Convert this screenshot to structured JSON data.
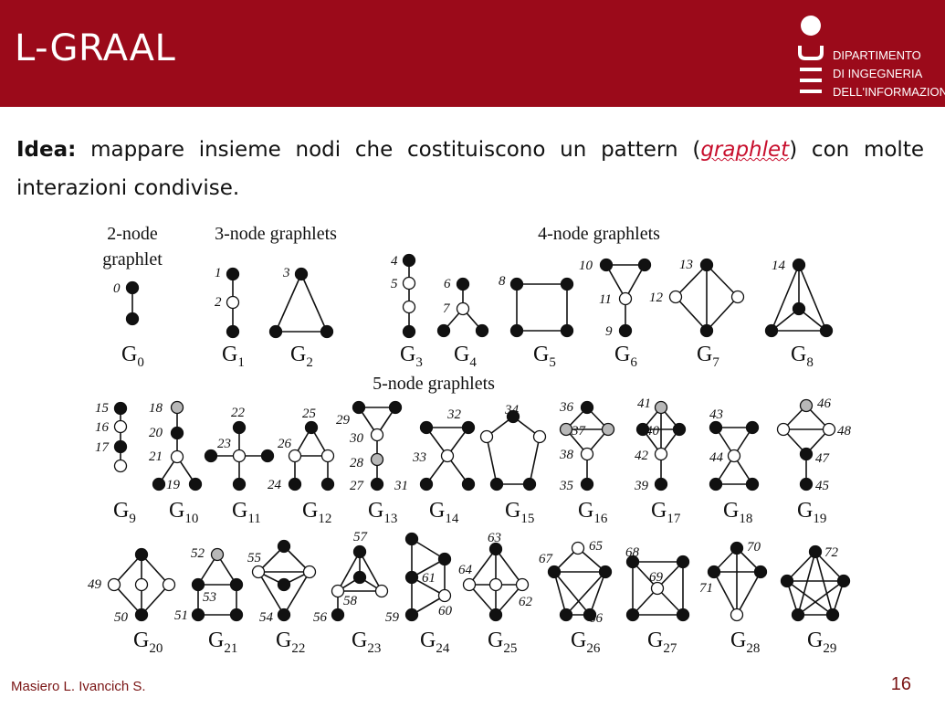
{
  "slide": {
    "title": "L-GRAAL",
    "logo_lines": [
      "DIPARTIMENTO",
      "DI INGEGNERIA",
      "DELL'INFORMAZIONE"
    ],
    "idea_label": "Idea:",
    "idea_text_before": " mappare insieme nodi che costituiscono un pattern (",
    "idea_highlight": "graphlet",
    "idea_text_after": ") con molte interazioni condivise.",
    "footer_authors": "Masiero L. Ivancich S.",
    "page_number": "16"
  },
  "diagram": {
    "section_labels": [
      "2-node graphlet",
      "3-node graphlets",
      "4-node graphlets",
      "5-node graphlets"
    ],
    "graph_labels": [
      "G0",
      "G1",
      "G2",
      "G3",
      "G4",
      "G5",
      "G6",
      "G7",
      "G8",
      "G9",
      "G10",
      "G11",
      "G12",
      "G13",
      "G14",
      "G15",
      "G16",
      "G17",
      "G18",
      "G19",
      "G20",
      "G21",
      "G22",
      "G23",
      "G24",
      "G25",
      "G26",
      "G27",
      "G28",
      "G29"
    ],
    "orbit_count": 73,
    "node_colors": {
      "black": "#111111",
      "white": "#ffffff",
      "gray": "#b8b8b8"
    }
  }
}
